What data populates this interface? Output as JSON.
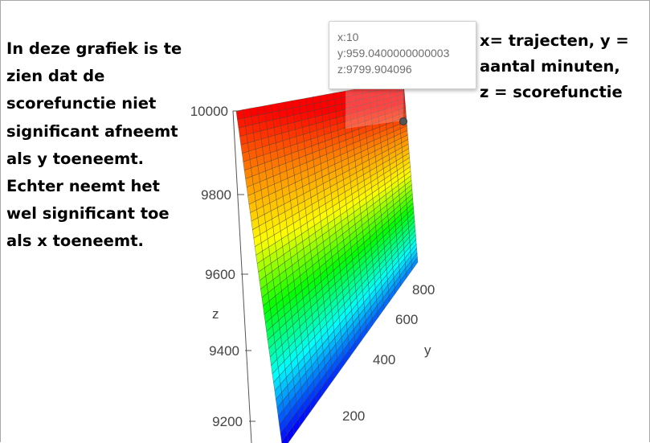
{
  "annotations": {
    "left": "In deze grafiek is te\nzien dat de\nscorefunctie niet\nsignificant afneemt\nals y toeneemt.\nEchter neemt het\nwel significant toe\nals x toeneemt.",
    "right": "x= trajecten, y =\naantal minuten,\nz = scorefunctie"
  },
  "tooltip": {
    "x_text": "x:10",
    "y_text": "y:959.0400000000003",
    "z_text": "z:9799.904096"
  },
  "chart_data": {
    "type": "surface",
    "title": "",
    "z_axis": {
      "label": "z",
      "ticks": [
        "10000",
        "9800",
        "9600",
        "9400",
        "9200"
      ]
    },
    "y_axis": {
      "label": "y",
      "ticks": [
        "800",
        "600",
        "400",
        "200"
      ]
    },
    "colorscale": [
      "#ff0000",
      "#ff8c00",
      "#ffff00",
      "#00ff00",
      "#00ffff",
      "#0000ff"
    ],
    "highlighted_point": {
      "x": 10,
      "y": 959.0400000000003,
      "z": 9799.904096
    },
    "grid": "wireframe"
  }
}
